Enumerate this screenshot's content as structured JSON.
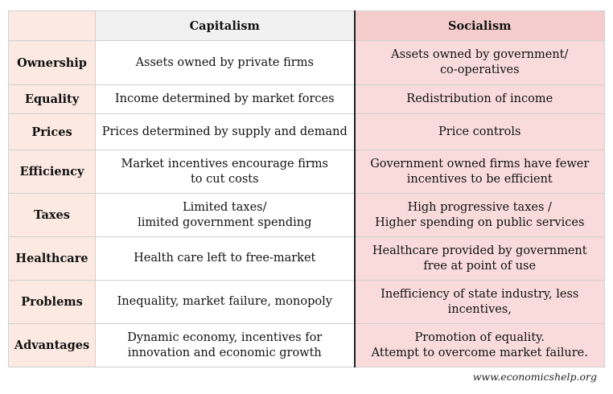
{
  "headers": {
    "corner": "",
    "capitalism": "Capitalism",
    "socialism": "Socialism"
  },
  "rows": [
    {
      "label": "Ownership",
      "cap": [
        "Assets owned by private firms"
      ],
      "soc": [
        "Assets owned by government/",
        "co-operatives"
      ]
    },
    {
      "label": "Equality",
      "cap": [
        "Income determined by market forces"
      ],
      "soc": [
        "Redistribution of income"
      ]
    },
    {
      "label": "Prices",
      "cap": [
        "Prices determined by supply and demand"
      ],
      "soc": [
        "Price controls"
      ]
    },
    {
      "label": "Efficiency",
      "cap": [
        "Market incentives encourage firms",
        "to cut costs"
      ],
      "soc": [
        "Government owned firms have fewer",
        "incentives to be efficient"
      ]
    },
    {
      "label": "Taxes",
      "cap": [
        "Limited taxes/",
        "limited government spending"
      ],
      "soc": [
        "High progressive taxes /",
        "Higher spending on public services"
      ]
    },
    {
      "label": "Healthcare",
      "cap": [
        "Health care left to free-market"
      ],
      "soc": [
        "Healthcare provided by government",
        "free at point of use"
      ]
    },
    {
      "label": "Problems",
      "cap": [
        "Inequality, market failure, monopoly"
      ],
      "soc": [
        "Inefficiency of state industry, less",
        "incentives,"
      ]
    },
    {
      "label": "Advantages",
      "cap": [
        "Dynamic economy, incentives for",
        "innovation and economic growth"
      ],
      "soc": [
        "Promotion of equality.",
        "Attempt to overcome market failure."
      ]
    }
  ],
  "credit": "www.economicshelp.org",
  "colors": {
    "label_bg": "#fbe9e2",
    "cap_header_bg": "#f1f1f1",
    "soc_header_bg": "#f5cccc",
    "soc_cell_bg": "#f9dbdb"
  }
}
